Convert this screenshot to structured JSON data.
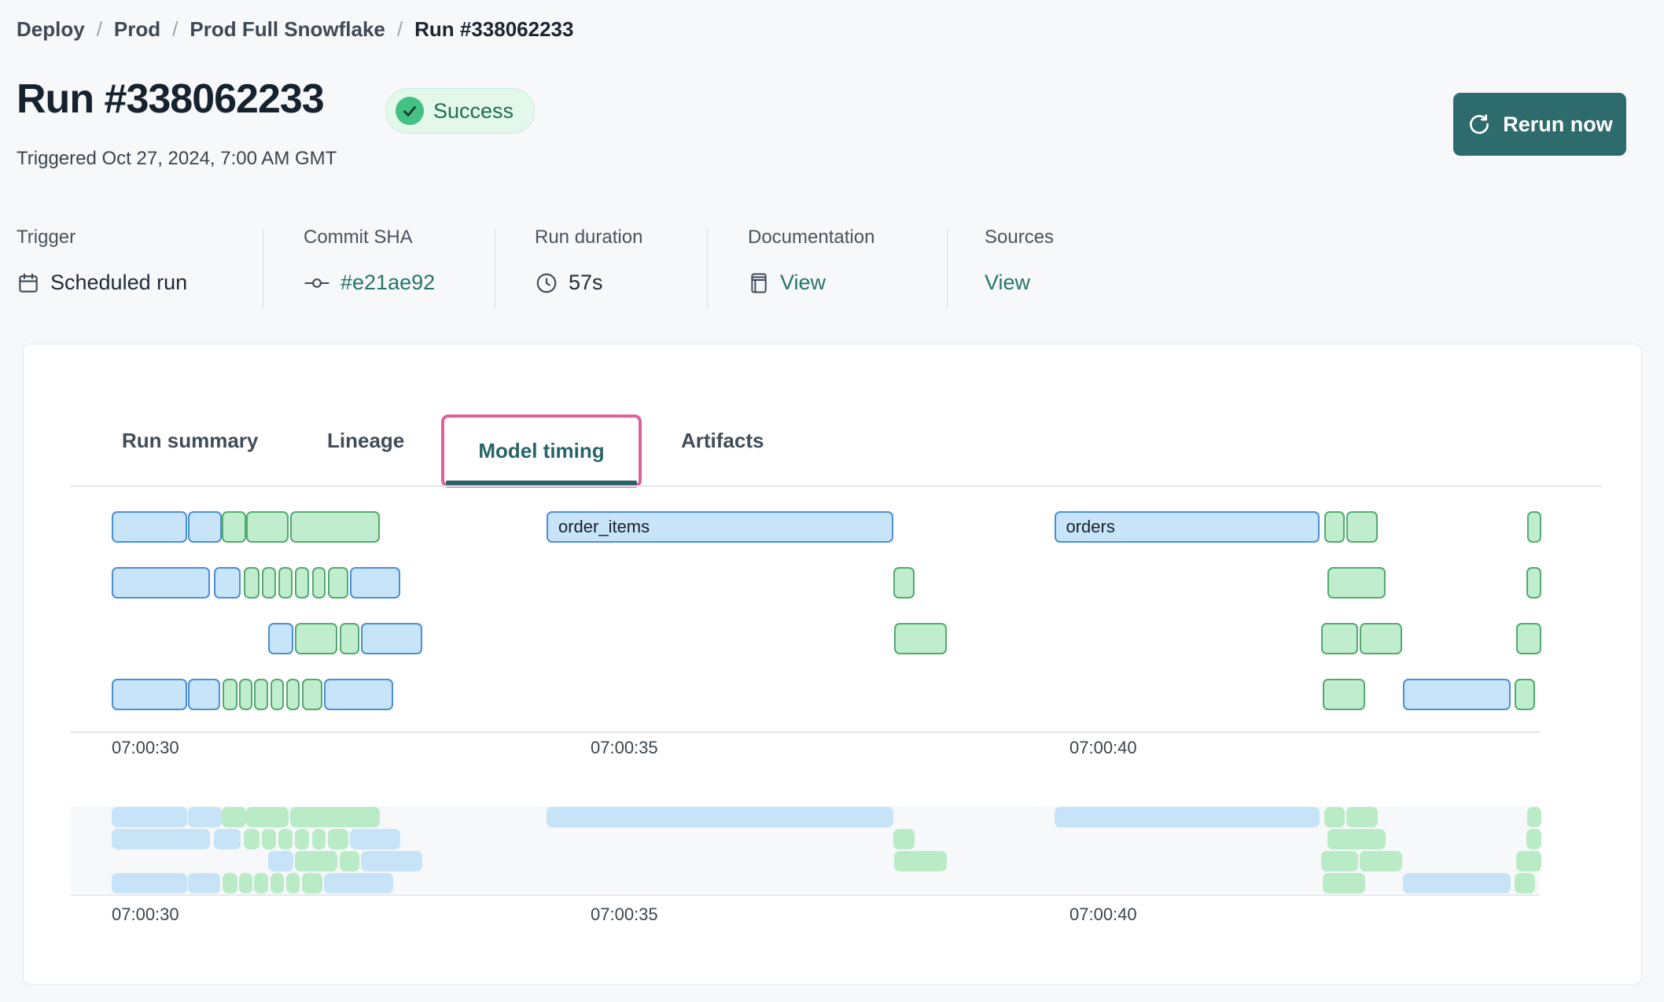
{
  "breadcrumb": {
    "separator": "/",
    "items": [
      "Deploy",
      "Prod",
      "Prod Full Snowflake",
      "Run #338062233"
    ]
  },
  "header": {
    "title": "Run #338062233",
    "status": "Success",
    "triggered": "Triggered Oct 27, 2024, 7:00 AM GMT",
    "rerun_label": "Rerun now"
  },
  "meta": {
    "columns": [
      {
        "label": "Trigger",
        "value": "Scheduled run",
        "icon": "calendar-icon",
        "link": false
      },
      {
        "label": "Commit SHA",
        "value": "#e21ae92",
        "icon": "commit-icon",
        "link": true
      },
      {
        "label": "Run duration",
        "value": "57s",
        "icon": "clock-icon",
        "link": false
      },
      {
        "label": "Documentation",
        "value": "View",
        "icon": "docs-icon",
        "link": true
      },
      {
        "label": "Sources",
        "value": "View",
        "icon": null,
        "link": true
      }
    ]
  },
  "tabs": [
    {
      "label": "Run summary",
      "active": false,
      "highlighted": false
    },
    {
      "label": "Lineage",
      "active": false,
      "highlighted": false
    },
    {
      "label": "Model timing",
      "active": true,
      "highlighted": true
    },
    {
      "label": "Artifacts",
      "active": false,
      "highlighted": false
    }
  ],
  "colors": {
    "page_bg": "#f7f8fa",
    "accent_teal": "#2e6b6c",
    "link_teal": "#26756b",
    "success_bg": "#e3f8eb",
    "success_text": "#216e4b",
    "success_dot": "#44c183",
    "highlight_pink": "#e0609c",
    "tab_active": "#26646a",
    "bar_blue_fill": "#c8e4f8",
    "bar_blue_border": "#4a8fd8",
    "bar_green_fill": "#c0edcd",
    "bar_green_border": "#53aa70"
  },
  "chart_data": {
    "type": "gantt",
    "title": "Model timing",
    "time_origin": "07:00:30",
    "rows": 4,
    "x_axis": {
      "ticks": [
        {
          "label": "07:00:30",
          "t": 0
        },
        {
          "label": "07:00:35",
          "t": 5
        },
        {
          "label": "07:00:40",
          "t": 10
        }
      ],
      "seconds_visible": 15
    },
    "bars": [
      {
        "row": 0,
        "start": 0.0,
        "end": 0.79,
        "color": "blue"
      },
      {
        "row": 0,
        "start": 0.8,
        "end": 1.15,
        "color": "blue"
      },
      {
        "row": 0,
        "start": 1.15,
        "end": 1.4,
        "color": "green"
      },
      {
        "row": 0,
        "start": 1.4,
        "end": 1.85,
        "color": "green"
      },
      {
        "row": 0,
        "start": 1.86,
        "end": 2.8,
        "color": "green"
      },
      {
        "row": 0,
        "start": 4.54,
        "end": 8.16,
        "color": "blue",
        "label": "order_items"
      },
      {
        "row": 0,
        "start": 9.84,
        "end": 12.61,
        "color": "blue",
        "label": "orders"
      },
      {
        "row": 0,
        "start": 12.66,
        "end": 12.87,
        "color": "green"
      },
      {
        "row": 0,
        "start": 12.89,
        "end": 13.22,
        "color": "green"
      },
      {
        "row": 0,
        "start": 14.78,
        "end": 14.93,
        "color": "green"
      },
      {
        "row": 1,
        "start": 0.0,
        "end": 1.03,
        "color": "blue"
      },
      {
        "row": 1,
        "start": 1.07,
        "end": 1.35,
        "color": "blue"
      },
      {
        "row": 1,
        "start": 1.38,
        "end": 1.54,
        "color": "green"
      },
      {
        "row": 1,
        "start": 1.57,
        "end": 1.72,
        "color": "green"
      },
      {
        "row": 1,
        "start": 1.74,
        "end": 1.89,
        "color": "green"
      },
      {
        "row": 1,
        "start": 1.91,
        "end": 2.06,
        "color": "green"
      },
      {
        "row": 1,
        "start": 2.09,
        "end": 2.23,
        "color": "green"
      },
      {
        "row": 1,
        "start": 2.26,
        "end": 2.47,
        "color": "green"
      },
      {
        "row": 1,
        "start": 2.49,
        "end": 3.01,
        "color": "blue"
      },
      {
        "row": 1,
        "start": 8.16,
        "end": 8.38,
        "color": "green"
      },
      {
        "row": 1,
        "start": 12.69,
        "end": 13.3,
        "color": "green"
      },
      {
        "row": 1,
        "start": 14.77,
        "end": 14.93,
        "color": "green"
      },
      {
        "row": 2,
        "start": 1.63,
        "end": 1.9,
        "color": "blue"
      },
      {
        "row": 2,
        "start": 1.91,
        "end": 2.36,
        "color": "green"
      },
      {
        "row": 2,
        "start": 2.38,
        "end": 2.59,
        "color": "green"
      },
      {
        "row": 2,
        "start": 2.6,
        "end": 3.24,
        "color": "blue"
      },
      {
        "row": 2,
        "start": 8.17,
        "end": 8.72,
        "color": "green"
      },
      {
        "row": 2,
        "start": 12.63,
        "end": 13.01,
        "color": "green"
      },
      {
        "row": 2,
        "start": 13.03,
        "end": 13.47,
        "color": "green"
      },
      {
        "row": 2,
        "start": 14.66,
        "end": 14.93,
        "color": "green"
      },
      {
        "row": 3,
        "start": 0.0,
        "end": 0.79,
        "color": "blue"
      },
      {
        "row": 3,
        "start": 0.8,
        "end": 1.13,
        "color": "blue"
      },
      {
        "row": 3,
        "start": 1.16,
        "end": 1.31,
        "color": "green"
      },
      {
        "row": 3,
        "start": 1.33,
        "end": 1.47,
        "color": "green"
      },
      {
        "row": 3,
        "start": 1.49,
        "end": 1.63,
        "color": "green"
      },
      {
        "row": 3,
        "start": 1.66,
        "end": 1.8,
        "color": "green"
      },
      {
        "row": 3,
        "start": 1.82,
        "end": 1.96,
        "color": "green"
      },
      {
        "row": 3,
        "start": 1.99,
        "end": 2.2,
        "color": "green"
      },
      {
        "row": 3,
        "start": 2.22,
        "end": 2.94,
        "color": "blue"
      },
      {
        "row": 3,
        "start": 12.64,
        "end": 13.09,
        "color": "green"
      },
      {
        "row": 3,
        "start": 13.48,
        "end": 14.61,
        "color": "blue"
      },
      {
        "row": 3,
        "start": 14.65,
        "end": 14.86,
        "color": "green"
      }
    ]
  }
}
